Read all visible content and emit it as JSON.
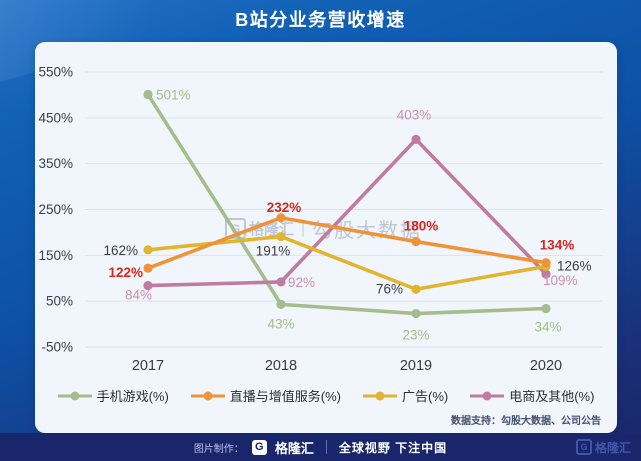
{
  "header": {
    "title": "B站分业务营收增速"
  },
  "watermark": {
    "g": "G",
    "brand": "格隆汇",
    "divider": "|",
    "name": "勾股大数据"
  },
  "card": {
    "data_support": "数据支持：勾股大数据、公司公告"
  },
  "footer": {
    "made_by_label": "图片制作：",
    "g": "G",
    "brand": "格隆汇",
    "slogan": "全球视野 下注中国",
    "right_g": "G",
    "right_brand": "格隆汇"
  },
  "chart_data": {
    "type": "line",
    "title": "B站分业务营收增速",
    "x_categories": [
      "2017",
      "2018",
      "2019",
      "2020"
    ],
    "ylim": [
      -50,
      550
    ],
    "ytick_values": [
      550,
      450,
      350,
      250,
      150,
      50,
      -50
    ],
    "ytick_suffix": "%",
    "grid": true,
    "legend_position": "bottom",
    "series": [
      {
        "name": "手机游戏(%)",
        "color": "#a5bd8d",
        "label_color": "#a2bd86",
        "label_bold": false,
        "values": [
          501,
          43,
          23,
          34
        ],
        "label_offsets": [
          {
            "dx": 8,
            "dy": 5,
            "anchor": "start"
          },
          {
            "dx": 0,
            "dy": 24,
            "anchor": "middle"
          },
          {
            "dx": 0,
            "dy": 26,
            "anchor": "middle"
          },
          {
            "dx": 2,
            "dy": 23,
            "anchor": "middle"
          }
        ]
      },
      {
        "name": "直播与增值服务(%)",
        "color": "#ef9339",
        "label_color": "#d5281e",
        "label_bold": true,
        "values": [
          122,
          232,
          180,
          134
        ],
        "label_offsets": [
          {
            "dx": -5,
            "dy": 9,
            "anchor": "end"
          },
          {
            "dx": 3,
            "dy": -6,
            "anchor": "middle"
          },
          {
            "dx": 5,
            "dy": -11,
            "anchor": "middle"
          },
          {
            "dx": 11,
            "dy": -13,
            "anchor": "middle"
          }
        ]
      },
      {
        "name": "广告(%)",
        "color": "#e1b52f",
        "label_color": "#3d3d3d",
        "label_bold": false,
        "values": [
          162,
          191,
          76,
          126
        ],
        "label_offsets": [
          {
            "dx": -10,
            "dy": 5,
            "anchor": "end"
          },
          {
            "dx": -8,
            "dy": 19,
            "anchor": "middle"
          },
          {
            "dx": -13,
            "dy": 4,
            "anchor": "end"
          },
          {
            "dx": 11,
            "dy": 4,
            "anchor": "start"
          }
        ]
      },
      {
        "name": "电商及其他(%)",
        "color": "#c17ba1",
        "label_color": "#cb8fb2",
        "label_bold": false,
        "values": [
          84,
          92,
          403,
          109
        ],
        "label_offsets": [
          {
            "dx": 4,
            "dy": 14,
            "anchor": "end"
          },
          {
            "dx": 7,
            "dy": 5,
            "anchor": "start"
          },
          {
            "dx": -2,
            "dy": -20,
            "anchor": "middle"
          },
          {
            "dx": -3,
            "dy": 11,
            "anchor": "start"
          }
        ]
      }
    ]
  }
}
